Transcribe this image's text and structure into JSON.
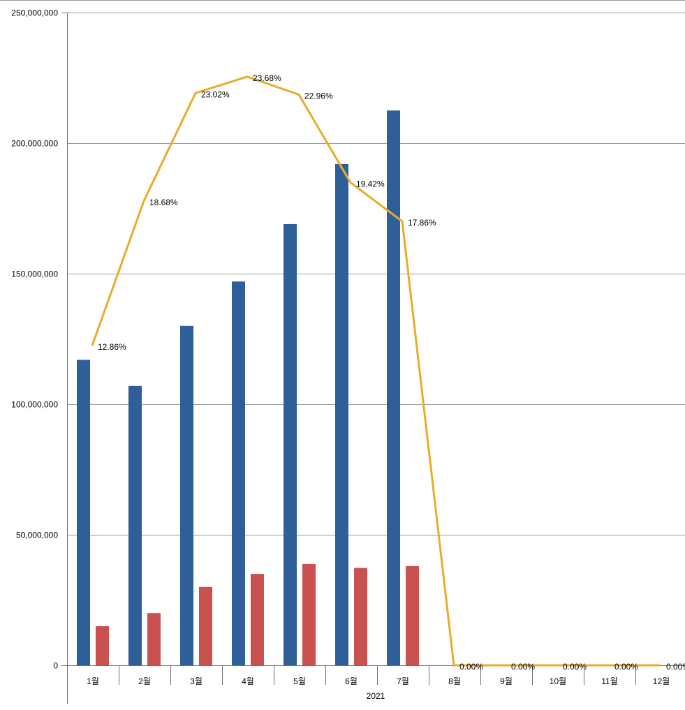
{
  "chart_data": {
    "type": "bar",
    "categories": [
      "1월",
      "2월",
      "3월",
      "4월",
      "5월",
      "6월",
      "7월",
      "8월",
      "9월",
      "10월",
      "11월",
      "12월"
    ],
    "group_label": "2021",
    "ylim": [
      0,
      250000000
    ],
    "y_ticks": [
      0,
      50000000,
      100000000,
      150000000,
      200000000,
      250000000
    ],
    "y_tick_labels": [
      "0",
      "50,000,000",
      "100,000,000",
      "150,000,000",
      "200,000,000",
      "250,000,000"
    ],
    "grid": true,
    "legend": "none",
    "series": [
      {
        "type": "bar",
        "color": "#2f5f98",
        "values": [
          117000000,
          107000000,
          130000000,
          147000000,
          169000000,
          192000000,
          212500000,
          0,
          0,
          0,
          0,
          0
        ]
      },
      {
        "type": "bar",
        "color": "#c9514f",
        "values": [
          15000000,
          20000000,
          30000000,
          35000000,
          38800000,
          37300000,
          38000000,
          0,
          0,
          0,
          0,
          0
        ]
      },
      {
        "type": "line",
        "color": "#e8ac2a",
        "values": [
          12.86,
          18.68,
          23.02,
          23.68,
          22.96,
          19.42,
          17.86,
          0,
          0,
          0,
          0,
          0
        ],
        "labels": [
          "12.86%",
          "18.68%",
          "23.02%",
          "23.68%",
          "22.96%",
          "19.42%",
          "17.86%",
          "0.00%",
          "0.00%",
          "0.00%",
          "0.00%",
          "0.00%"
        ]
      }
    ]
  }
}
